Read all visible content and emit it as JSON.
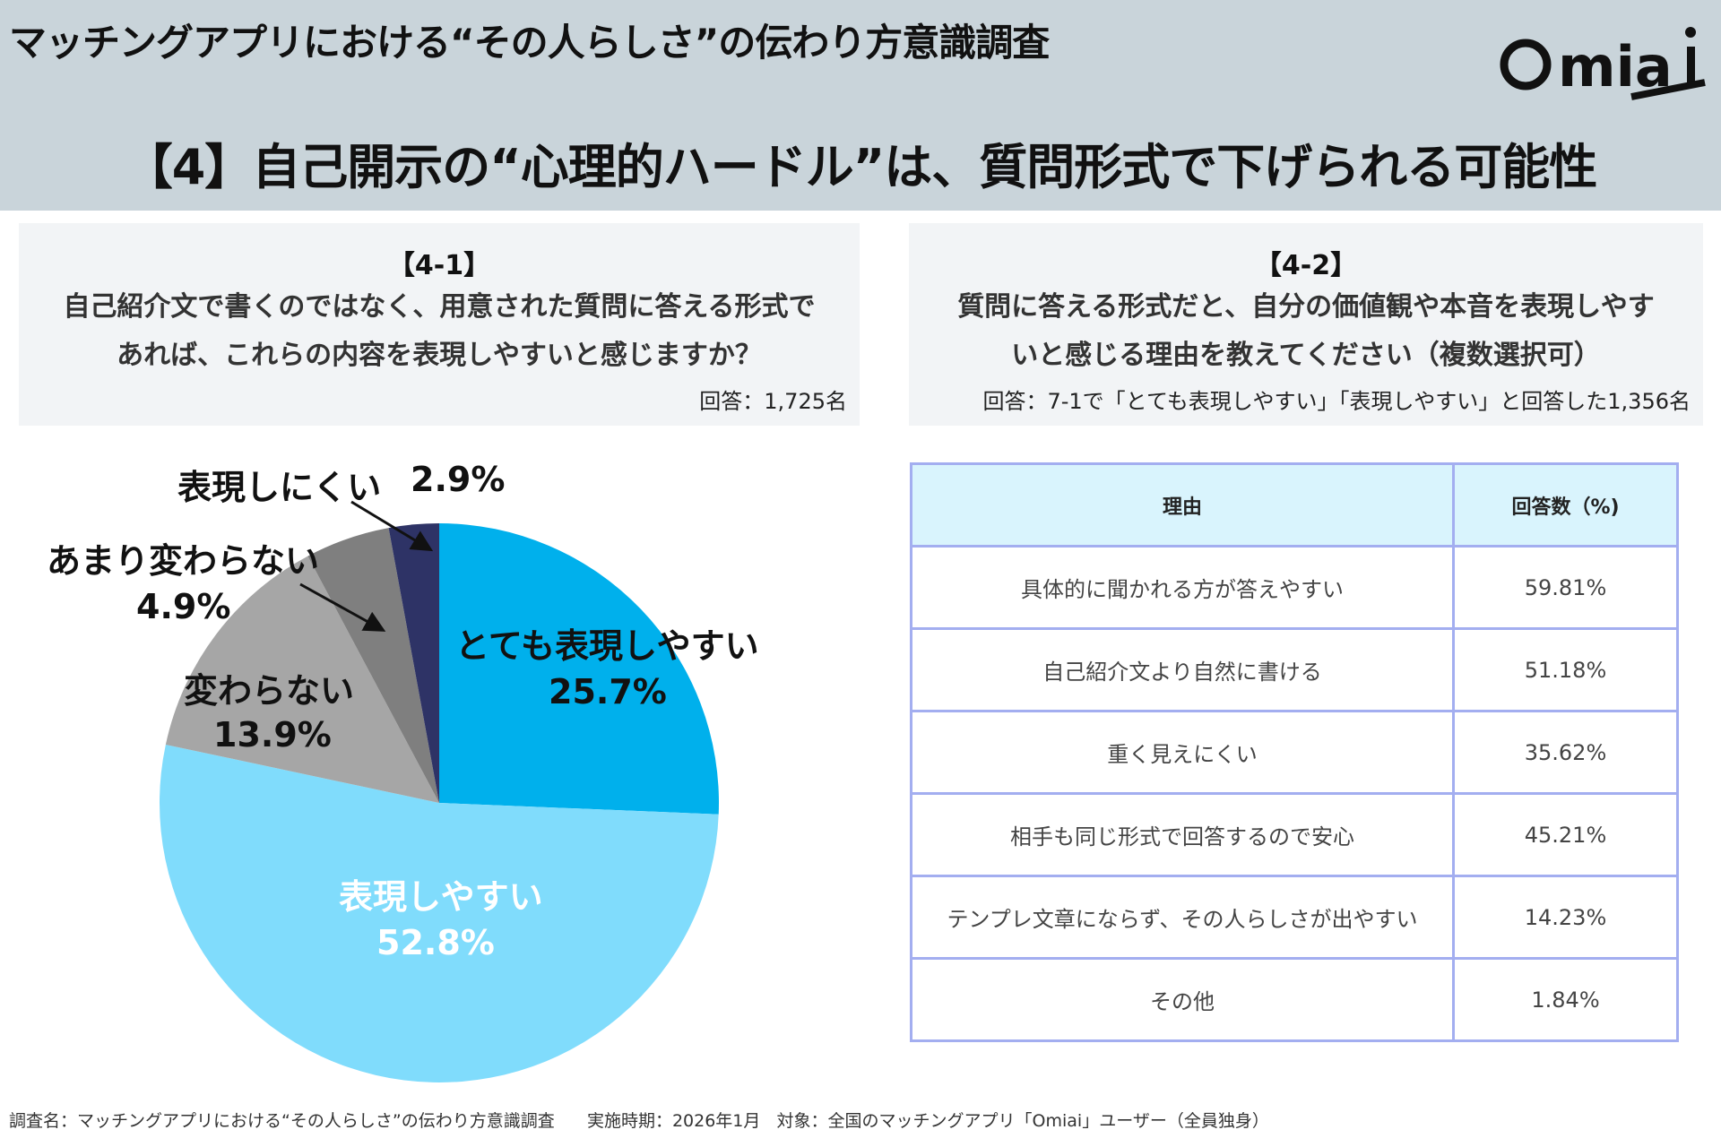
{
  "header": {
    "survey_title": "マッチングアプリにおける“その人らしさ”の伝わり方意識調査",
    "headline": "【4】自己開示の“心理的ハードル”は、質問形式で下げられる可能性",
    "logo": "Omiai"
  },
  "q1": {
    "number": "【4-1】",
    "question_line1": "自己紹介文で書くのではなく、用意された質問に答える形式で",
    "question_line2": "あれば、これらの内容を表現しやすいと感じますか？",
    "respondents": "回答：1,725名"
  },
  "q2": {
    "number": "【4-2】",
    "question_line1": "質問に答える形式だと、自分の価値観や本音を表現しやす",
    "question_line2": "いと感じる理由を教えてください（複数選択可）",
    "respondents": "回答：7-1で「とても表現しやすい」「表現しやすい」と回答した1,356名"
  },
  "chart_data": {
    "type": "pie",
    "start": "top",
    "direction": "clockwise",
    "slices": [
      {
        "label": "とても表現しやすい",
        "value": 25.7,
        "display": "25.7%",
        "color": "#00b0ec"
      },
      {
        "label": "表現しやすい",
        "value": 52.8,
        "display": "52.8%",
        "color": "#80dcfc"
      },
      {
        "label": "変わらない",
        "value": 13.9,
        "display": "13.9%",
        "color": "#a6a6a6"
      },
      {
        "label": "あまり変わらない",
        "value": 4.9,
        "display": "4.9%",
        "color": "#7f7f7f"
      },
      {
        "label": "表現しにくい",
        "value": 2.9,
        "display": "2.9%",
        "color": "#2e3366"
      }
    ]
  },
  "table": {
    "headers": [
      "理由",
      "回答数（%)"
    ],
    "rows": [
      [
        "具体的に聞かれる方が答えやすい",
        "59.81%"
      ],
      [
        "自己紹介文より自然に書ける",
        "51.18%"
      ],
      [
        "重く見えにくい",
        "35.62%"
      ],
      [
        "相手も同じ形式で回答するので安心",
        "45.21%"
      ],
      [
        "テンプレ文章にならず、その人らしさが出やすい",
        "14.23%"
      ],
      [
        "その他",
        "1.84%"
      ]
    ]
  },
  "footer": {
    "survey": "調査名：マッチングアプリにおける“その人らしさ”の伝わり方意識調査",
    "period": "実施時期：2026年1月",
    "target": "対象：全国のマッチングアプリ「Omiai」ユーザー（全員独身）"
  }
}
